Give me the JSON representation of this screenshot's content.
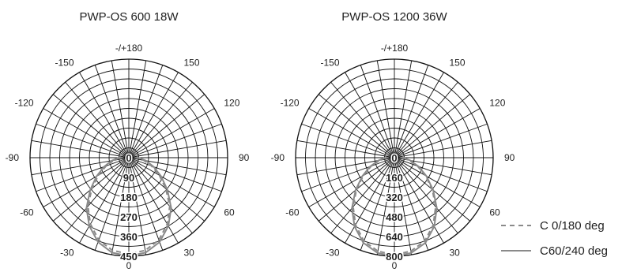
{
  "chart_data": [
    {
      "type": "polar",
      "title": "PWP-OS 600 18W",
      "angle_labels": [
        "-/+180",
        "150",
        "120",
        "90",
        "60",
        "30",
        "0",
        "-30",
        "-60",
        "-90",
        "-120",
        "-150"
      ],
      "radial_labels": [
        "0",
        "90",
        "180",
        "270",
        "360",
        "450"
      ],
      "radial_max": 450,
      "series": [
        {
          "name": "C 0/180 deg",
          "dash": "dashed",
          "color": "#8a8a8a",
          "angles": [
            0,
            10,
            20,
            30,
            40,
            50,
            60,
            70,
            80,
            90
          ],
          "values": [
            440,
            430,
            400,
            350,
            290,
            220,
            160,
            110,
            70,
            40
          ]
        },
        {
          "name": "C60/240 deg",
          "dash": "solid",
          "color": "#8a8a8a",
          "angles": [
            0,
            10,
            20,
            30,
            40,
            50,
            60,
            70,
            80,
            90
          ],
          "values": [
            450,
            440,
            410,
            360,
            300,
            230,
            170,
            120,
            80,
            45
          ]
        }
      ]
    },
    {
      "type": "polar",
      "title": "PWP-OS 1200 36W",
      "angle_labels": [
        "-/+180",
        "150",
        "120",
        "90",
        "60",
        "30",
        "0",
        "-30",
        "-60",
        "-90",
        "-120",
        "-150"
      ],
      "radial_labels": [
        "0",
        "160",
        "320",
        "480",
        "640",
        "800"
      ],
      "radial_max": 800,
      "series": [
        {
          "name": "C 0/180 deg",
          "dash": "dashed",
          "color": "#8a8a8a",
          "angles": [
            0,
            10,
            20,
            30,
            40,
            50,
            60,
            70,
            80,
            90
          ],
          "values": [
            790,
            770,
            720,
            630,
            520,
            400,
            290,
            200,
            120,
            70
          ]
        },
        {
          "name": "C60/240 deg",
          "dash": "solid",
          "color": "#8a8a8a",
          "angles": [
            0,
            10,
            20,
            30,
            40,
            50,
            60,
            70,
            80,
            90
          ],
          "values": [
            800,
            785,
            735,
            645,
            535,
            410,
            300,
            210,
            130,
            75
          ]
        }
      ]
    }
  ],
  "legend": [
    {
      "label": "C  0/180 deg",
      "style": "dashed"
    },
    {
      "label": "C60/240 deg",
      "style": "solid"
    }
  ],
  "colors": {
    "grid": "#111111",
    "curve": "#8a8a8a"
  }
}
